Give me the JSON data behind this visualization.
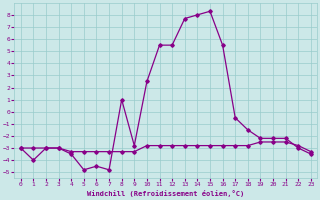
{
  "xlabel": "Windchill (Refroidissement éolien,°C)",
  "background_color": "#cce8e8",
  "grid_color": "#99cccc",
  "line_color": "#880088",
  "x_values": [
    0,
    1,
    2,
    3,
    4,
    5,
    6,
    7,
    8,
    9,
    10,
    11,
    12,
    13,
    14,
    15,
    16,
    17,
    18,
    19,
    20,
    21,
    22,
    23
  ],
  "y_main": [
    -3,
    -4,
    -3,
    -3,
    -3.5,
    -4.8,
    -4.5,
    -4.8,
    1.0,
    -2.8,
    2.5,
    5.5,
    5.5,
    7.7,
    8.0,
    8.3,
    5.5,
    -0.5,
    -1.5,
    -2.2,
    -2.2,
    -2.2,
    -3.0,
    -3.5
  ],
  "y_flat": [
    -3,
    -3,
    -3,
    -3,
    -3.3,
    -3.3,
    -3.3,
    -3.3,
    -3.3,
    -3.3,
    -2.8,
    -2.8,
    -2.8,
    -2.8,
    -2.8,
    -2.8,
    -2.8,
    -2.8,
    -2.8,
    -2.5,
    -2.5,
    -2.5,
    -2.8,
    -3.3
  ],
  "ylim": [
    -5.5,
    9.0
  ],
  "xlim": [
    -0.5,
    23.5
  ],
  "yticks": [
    -5,
    -4,
    -3,
    -2,
    -1,
    0,
    1,
    2,
    3,
    4,
    5,
    6,
    7,
    8
  ],
  "xticks": [
    0,
    1,
    2,
    3,
    4,
    5,
    6,
    7,
    8,
    9,
    10,
    11,
    12,
    13,
    14,
    15,
    16,
    17,
    18,
    19,
    20,
    21,
    22,
    23
  ]
}
